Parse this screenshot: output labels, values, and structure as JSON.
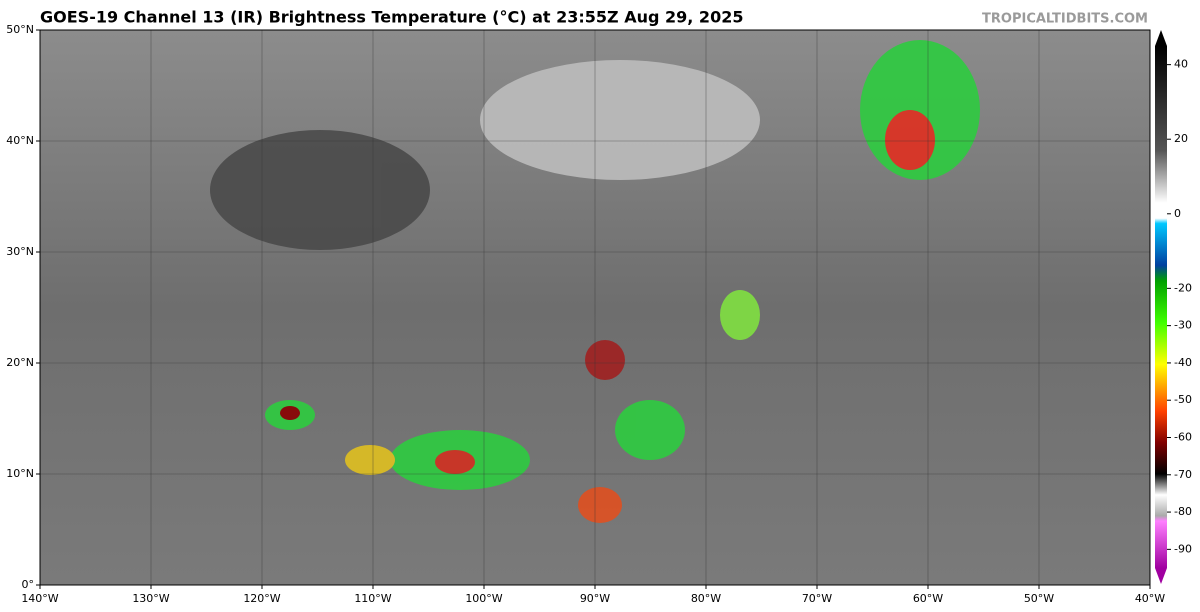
{
  "map": {
    "title": "GOES-19 Channel 13 (IR) Brightness Temperature (°C) at 23:55Z Aug 29, 2025",
    "watermark": "TROPICALTIDBITS.COM",
    "lonlim": [
      -140,
      -40
    ],
    "latlim": [
      0,
      50
    ],
    "lonticks": [
      {
        "value": -140,
        "label": "140°W"
      },
      {
        "value": -130,
        "label": "130°W"
      },
      {
        "value": -120,
        "label": "120°W"
      },
      {
        "value": -110,
        "label": "110°W"
      },
      {
        "value": -100,
        "label": "100°W"
      },
      {
        "value": -90,
        "label": "90°W"
      },
      {
        "value": -80,
        "label": "80°W"
      },
      {
        "value": -70,
        "label": "70°W"
      },
      {
        "value": -60,
        "label": "60°W"
      },
      {
        "value": -50,
        "label": "50°W"
      },
      {
        "value": -40,
        "label": "40°W"
      }
    ],
    "latticks": [
      {
        "value": 0,
        "label": "0°"
      },
      {
        "value": 10,
        "label": "10°N"
      },
      {
        "value": 20,
        "label": "20°N"
      },
      {
        "value": 30,
        "label": "30°N"
      },
      {
        "value": 40,
        "label": "40°N"
      },
      {
        "value": 50,
        "label": "50°N"
      }
    ],
    "colorbar": {
      "lim": [
        -95,
        45
      ],
      "ticks": [
        40,
        20,
        0,
        -20,
        -30,
        -40,
        -50,
        -60,
        -70,
        -80,
        -90
      ]
    }
  }
}
